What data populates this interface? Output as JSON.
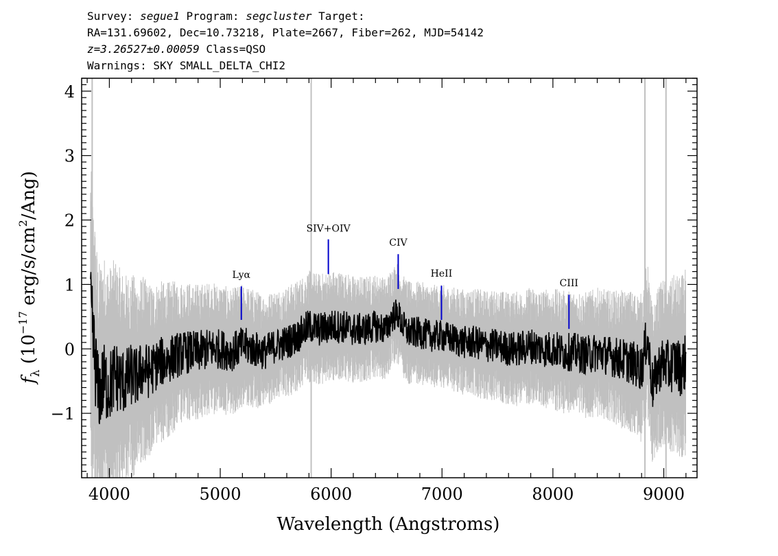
{
  "header": {
    "survey_label": "Survey: ",
    "survey": "segue1",
    "program_label": " Program: ",
    "program": "segcluster",
    "target_label": " Target:",
    "line2": "RA=131.69602, Dec=10.73218, Plate=2667, Fiber=262, MJD=54142",
    "redshift": "z=3.26527±0.00059",
    "class_text": " Class=QSO",
    "warnings": "Warnings: SKY SMALL_DELTA_CHI2"
  },
  "chart_data": {
    "type": "line",
    "title": "",
    "xlabel": "Wavelength (Angstroms)",
    "ylabel_parts": {
      "f": "f",
      "lambda": "λ",
      "pre": " (10",
      "exp": "−17",
      "mid": " erg/s/cm",
      "sq": "2",
      "post": "/Ang)"
    },
    "xlim": [
      3750,
      9300
    ],
    "ylim": [
      -2.0,
      4.2
    ],
    "xticks": [
      4000,
      5000,
      6000,
      7000,
      8000,
      9000
    ],
    "xtick_labels": [
      "4000",
      "5000",
      "6000",
      "7000",
      "8000",
      "9000"
    ],
    "yticks": [
      -1,
      0,
      1,
      2,
      3,
      4
    ],
    "ytick_labels": [
      "−1",
      "0",
      "1",
      "2",
      "3",
      "4"
    ],
    "grid": false,
    "colors": {
      "flux": "#000000",
      "error": "#c0c0c0",
      "line_marker": "#0000cc"
    },
    "series": [
      {
        "name": "flux",
        "x": [
          3830,
          3860,
          3900,
          3950,
          4000,
          4050,
          4100,
          4150,
          4200,
          4250,
          4300,
          4350,
          4400,
          4450,
          4500,
          4600,
          4700,
          4800,
          4900,
          5000,
          5100,
          5200,
          5300,
          5400,
          5500,
          5600,
          5700,
          5800,
          5900,
          6000,
          6100,
          6200,
          6300,
          6400,
          6500,
          6550,
          6600,
          6650,
          6700,
          6800,
          6900,
          7000,
          7100,
          7200,
          7300,
          7400,
          7500,
          7600,
          7700,
          7800,
          7900,
          8000,
          8100,
          8200,
          8300,
          8400,
          8500,
          8600,
          8700,
          8800,
          8850,
          8900,
          8950,
          9000,
          9050,
          9100,
          9150,
          9200
        ],
        "y": [
          0.6,
          0.0,
          -0.7,
          -0.5,
          -0.6,
          -0.4,
          -0.5,
          -0.5,
          -0.4,
          -0.45,
          -0.3,
          -0.35,
          -0.3,
          -0.2,
          -0.2,
          -0.1,
          -0.05,
          -0.05,
          0.0,
          0.0,
          -0.05,
          0.05,
          0.0,
          -0.05,
          0.05,
          0.1,
          0.2,
          0.35,
          0.3,
          0.35,
          0.35,
          0.3,
          0.3,
          0.35,
          0.3,
          0.5,
          0.55,
          0.35,
          0.25,
          0.25,
          0.2,
          0.2,
          0.15,
          0.1,
          0.1,
          0.05,
          0.05,
          0.0,
          0.0,
          0.05,
          0.0,
          0.0,
          -0.05,
          -0.05,
          -0.1,
          -0.05,
          -0.1,
          -0.15,
          -0.2,
          -0.3,
          0.2,
          -0.6,
          -0.3,
          -0.2,
          -0.3,
          -0.2,
          -0.3,
          -0.2
        ]
      },
      {
        "name": "error",
        "x": [
          3830,
          3900,
          4000,
          4100,
          4200,
          4300,
          4400,
          4500,
          4700,
          5000,
          5500,
          6000,
          6500,
          7000,
          7500,
          8000,
          8500,
          8800,
          9000,
          9200
        ],
        "y": [
          1.6,
          1.4,
          1.3,
          1.2,
          1.1,
          1.0,
          0.9,
          0.85,
          0.75,
          0.7,
          0.6,
          0.6,
          0.55,
          0.55,
          0.6,
          0.65,
          0.7,
          0.8,
          0.9,
          1.0
        ]
      }
    ],
    "annotations": [
      {
        "label": "Lyα",
        "x": 5190,
        "y0": 0.45,
        "y1": 0.97,
        "label_y": 1.1
      },
      {
        "label": "SIV+OIV",
        "x": 5975,
        "y0": 1.16,
        "y1": 1.7,
        "label_y": 1.82
      },
      {
        "label": "CIV",
        "x": 6605,
        "y0": 0.93,
        "y1": 1.47,
        "label_y": 1.6
      },
      {
        "label": "HeII",
        "x": 6995,
        "y0": 0.45,
        "y1": 0.98,
        "label_y": 1.12
      },
      {
        "label": "CIII",
        "x": 8145,
        "y0": 0.31,
        "y1": 0.84,
        "label_y": 0.97
      }
    ]
  }
}
